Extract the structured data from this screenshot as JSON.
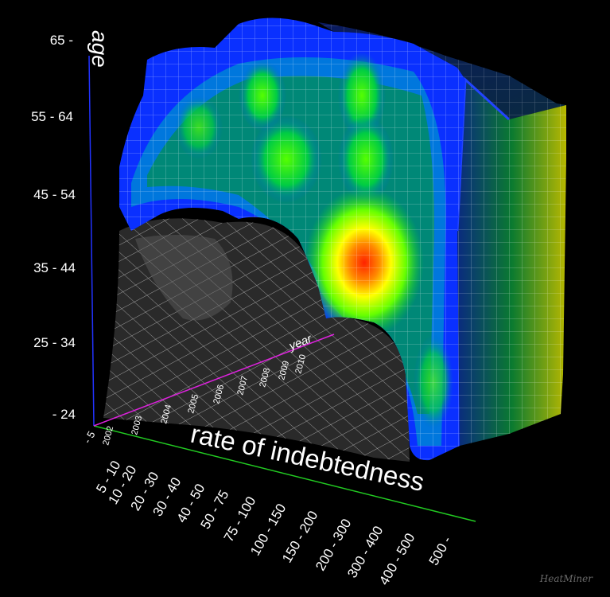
{
  "chart_data": {
    "type": "heatmap",
    "title": "",
    "y_axis": {
      "label": "age",
      "ticks": [
        "- 24",
        "25 - 34",
        "35 - 44",
        "45 - 54",
        "55 - 64",
        "65 -"
      ]
    },
    "x_axis": {
      "label": "rate of indebtedness",
      "ticks": [
        "- 5",
        "5 - 10",
        "10 - 20",
        "20 - 30",
        "30 - 40",
        "40 - 50",
        "50 - 75",
        "75 - 100",
        "100 - 150",
        "150 - 200",
        "200 - 300",
        "300 - 400",
        "400 - 500",
        "500 -"
      ]
    },
    "z_axis": {
      "label": "year",
      "ticks": [
        "2002",
        "2003",
        "2004",
        "2005",
        "2006",
        "2007",
        "2008",
        "2009",
        "2010"
      ]
    },
    "axis_colors": {
      "y": "#2233ff",
      "x": "#22cc22",
      "z": "#dd22dd"
    },
    "color_scale": [
      "#0000aa",
      "#0033ff",
      "#0099ff",
      "#00cc66",
      "#00ff00",
      "#aaff00",
      "#ffff00",
      "#ff9900",
      "#ff2200"
    ],
    "peak": {
      "age": "35 - 44",
      "rate": "200 - 300"
    }
  },
  "watermark": "HeatMiner"
}
